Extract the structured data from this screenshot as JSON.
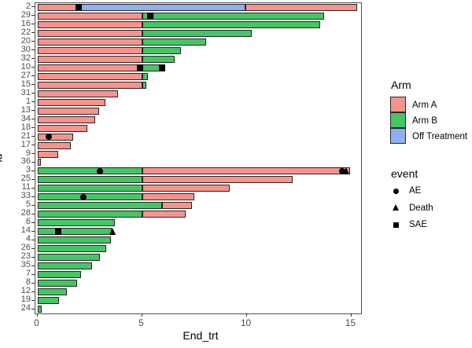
{
  "axes": {
    "x_label": "End_trt",
    "y_label": "id",
    "x_tick_labels": [
      "0",
      "5",
      "10",
      "15"
    ],
    "x_tick_values": [
      0,
      5,
      10,
      15
    ]
  },
  "legend": {
    "arm": {
      "title": "Arm",
      "items": [
        {
          "label": "Arm A",
          "color": "#F8938C"
        },
        {
          "label": "Arm B",
          "color": "#44C663"
        },
        {
          "label": "Off Treatment",
          "color": "#8FAFF2"
        }
      ]
    },
    "event": {
      "title": "event",
      "items": [
        {
          "label": "AE",
          "shape": "circle"
        },
        {
          "label": "Death",
          "shape": "triangle"
        },
        {
          "label": "SAE",
          "shape": "square"
        }
      ]
    }
  },
  "chart_data": {
    "type": "bar",
    "subtype": "horizontal-stacked-swimmer",
    "title": "",
    "xlabel": "End_trt",
    "ylabel": "id",
    "xlim": [
      0,
      15.45
    ],
    "grid": false,
    "legend_position": "right",
    "marker_color": "#000000",
    "bar_colors": {
      "Arm A": "#F8938C",
      "Arm B": "#44C663",
      "Off Treatment": "#8FAFF2"
    },
    "rows": [
      {
        "id": "2",
        "segments": [
          {
            "arm": "Arm A",
            "from": 0,
            "to": 2.05
          },
          {
            "arm": "Off Treatment",
            "from": 2.05,
            "to": 9.95
          },
          {
            "arm": "Arm A",
            "from": 9.95,
            "to": 15.3
          }
        ],
        "events": [
          {
            "type": "SAE",
            "x": 1.98
          }
        ]
      },
      {
        "id": "29",
        "segments": [
          {
            "arm": "Arm A",
            "from": 0,
            "to": 5
          },
          {
            "arm": "Arm B",
            "from": 5,
            "to": 13.7
          }
        ],
        "events": [
          {
            "type": "SAE",
            "x": 5.38
          }
        ]
      },
      {
        "id": "16",
        "segments": [
          {
            "arm": "Arm A",
            "from": 0,
            "to": 5
          },
          {
            "arm": "Arm B",
            "from": 5,
            "to": 13.5
          }
        ],
        "events": []
      },
      {
        "id": "22",
        "segments": [
          {
            "arm": "Arm A",
            "from": 0,
            "to": 5
          },
          {
            "arm": "Arm B",
            "from": 5,
            "to": 10.25
          }
        ],
        "events": []
      },
      {
        "id": "20",
        "segments": [
          {
            "arm": "Arm A",
            "from": 0,
            "to": 5
          },
          {
            "arm": "Arm B",
            "from": 5,
            "to": 8.05
          }
        ],
        "events": []
      },
      {
        "id": "30",
        "segments": [
          {
            "arm": "Arm A",
            "from": 0,
            "to": 5
          },
          {
            "arm": "Arm B",
            "from": 5,
            "to": 6.85
          }
        ],
        "events": []
      },
      {
        "id": "32",
        "segments": [
          {
            "arm": "Arm A",
            "from": 0,
            "to": 5
          },
          {
            "arm": "Arm B",
            "from": 5,
            "to": 6.55
          }
        ],
        "events": []
      },
      {
        "id": "10",
        "segments": [
          {
            "arm": "Arm A",
            "from": 0,
            "to": 5
          },
          {
            "arm": "Arm B",
            "from": 5,
            "to": 6.1
          }
        ],
        "events": [
          {
            "type": "SAE",
            "x": 4.92
          },
          {
            "type": "SAE",
            "x": 5.97
          }
        ]
      },
      {
        "id": "27",
        "segments": [
          {
            "arm": "Arm A",
            "from": 0,
            "to": 5
          },
          {
            "arm": "Arm B",
            "from": 5,
            "to": 5.3
          }
        ],
        "events": []
      },
      {
        "id": "15",
        "segments": [
          {
            "arm": "Arm A",
            "from": 0,
            "to": 5
          },
          {
            "arm": "Arm B",
            "from": 5,
            "to": 5.2
          }
        ],
        "events": []
      },
      {
        "id": "31",
        "segments": [
          {
            "arm": "Arm A",
            "from": 0,
            "to": 3.85
          }
        ],
        "events": []
      },
      {
        "id": "1",
        "segments": [
          {
            "arm": "Arm A",
            "from": 0,
            "to": 3.25
          }
        ],
        "events": []
      },
      {
        "id": "13",
        "segments": [
          {
            "arm": "Arm A",
            "from": 0,
            "to": 2.95
          }
        ],
        "events": []
      },
      {
        "id": "34",
        "segments": [
          {
            "arm": "Arm A",
            "from": 0,
            "to": 2.75
          }
        ],
        "events": []
      },
      {
        "id": "18",
        "segments": [
          {
            "arm": "Arm A",
            "from": 0,
            "to": 2.4
          }
        ],
        "events": []
      },
      {
        "id": "21",
        "segments": [
          {
            "arm": "Arm A",
            "from": 0,
            "to": 1.7
          }
        ],
        "events": [
          {
            "type": "AE",
            "x": 0.55
          }
        ]
      },
      {
        "id": "17",
        "segments": [
          {
            "arm": "Arm A",
            "from": 0,
            "to": 1.6
          }
        ],
        "events": []
      },
      {
        "id": "9",
        "segments": [
          {
            "arm": "Arm A",
            "from": 0,
            "to": 1.0
          }
        ],
        "events": []
      },
      {
        "id": "36",
        "segments": [
          {
            "arm": "Arm A",
            "from": 0,
            "to": 0.18
          }
        ],
        "events": []
      },
      {
        "id": "3",
        "segments": [
          {
            "arm": "Arm B",
            "from": 0,
            "to": 5
          },
          {
            "arm": "Arm A",
            "from": 5,
            "to": 14.95
          }
        ],
        "events": [
          {
            "type": "AE",
            "x": 3.0
          },
          {
            "type": "AE",
            "x": 14.55
          },
          {
            "type": "Death",
            "x": 14.8
          }
        ]
      },
      {
        "id": "25",
        "segments": [
          {
            "arm": "Arm B",
            "from": 0,
            "to": 5
          },
          {
            "arm": "Arm A",
            "from": 5,
            "to": 12.2
          }
        ],
        "events": []
      },
      {
        "id": "11",
        "segments": [
          {
            "arm": "Arm B",
            "from": 0,
            "to": 5
          },
          {
            "arm": "Arm A",
            "from": 5,
            "to": 9.2
          }
        ],
        "events": []
      },
      {
        "id": "33",
        "segments": [
          {
            "arm": "Arm B",
            "from": 0,
            "to": 5
          },
          {
            "arm": "Arm A",
            "from": 5,
            "to": 7.5
          }
        ],
        "events": [
          {
            "type": "AE",
            "x": 2.2
          }
        ]
      },
      {
        "id": "5",
        "segments": [
          {
            "arm": "Arm B",
            "from": 0,
            "to": 5.95
          },
          {
            "arm": "Arm A",
            "from": 5.95,
            "to": 7.4
          }
        ],
        "events": []
      },
      {
        "id": "28",
        "segments": [
          {
            "arm": "Arm B",
            "from": 0,
            "to": 5
          },
          {
            "arm": "Arm A",
            "from": 5,
            "to": 7.1
          }
        ],
        "events": []
      },
      {
        "id": "6",
        "segments": [
          {
            "arm": "Arm B",
            "from": 0,
            "to": 3.7
          }
        ],
        "events": []
      },
      {
        "id": "14",
        "segments": [
          {
            "arm": "Arm B",
            "from": 0,
            "to": 3.55
          }
        ],
        "events": [
          {
            "type": "SAE",
            "x": 1.0
          },
          {
            "type": "Death",
            "x": 3.62
          }
        ]
      },
      {
        "id": "4",
        "segments": [
          {
            "arm": "Arm B",
            "from": 0,
            "to": 3.5
          }
        ],
        "events": []
      },
      {
        "id": "26",
        "segments": [
          {
            "arm": "Arm B",
            "from": 0,
            "to": 3.3
          }
        ],
        "events": []
      },
      {
        "id": "23",
        "segments": [
          {
            "arm": "Arm B",
            "from": 0,
            "to": 3.0
          }
        ],
        "events": []
      },
      {
        "id": "35",
        "segments": [
          {
            "arm": "Arm B",
            "from": 0,
            "to": 2.6
          }
        ],
        "events": []
      },
      {
        "id": "7",
        "segments": [
          {
            "arm": "Arm B",
            "from": 0,
            "to": 2.1
          }
        ],
        "events": []
      },
      {
        "id": "8",
        "segments": [
          {
            "arm": "Arm B",
            "from": 0,
            "to": 1.9
          }
        ],
        "events": []
      },
      {
        "id": "12",
        "segments": [
          {
            "arm": "Arm B",
            "from": 0,
            "to": 1.4
          }
        ],
        "events": []
      },
      {
        "id": "19",
        "segments": [
          {
            "arm": "Arm B",
            "from": 0,
            "to": 1.05
          }
        ],
        "events": []
      },
      {
        "id": "24",
        "segments": [
          {
            "arm": "Arm B",
            "from": 0,
            "to": 0.2
          }
        ],
        "events": []
      }
    ]
  }
}
